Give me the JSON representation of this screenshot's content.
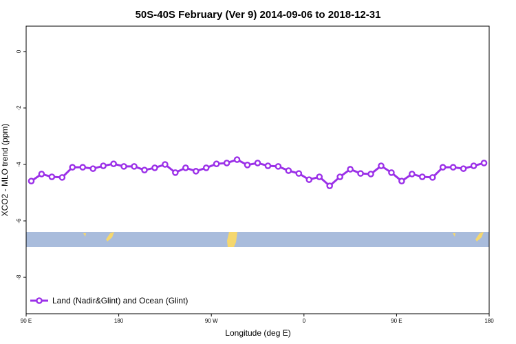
{
  "chart_data": {
    "type": "line",
    "title": "50S-40S February (Ver 9)   2014-09-06 to 2018-12-31",
    "x_label": "Longitude (deg E)",
    "y_label": "XCO2 - MLO trend (ppm)",
    "x": [
      95,
      105,
      115,
      125,
      135,
      145,
      155,
      165,
      175,
      185,
      195,
      205,
      215,
      225,
      235,
      245,
      255,
      265,
      275,
      285,
      295,
      305,
      315,
      325,
      335,
      345,
      355,
      365,
      375,
      385,
      395,
      405,
      415,
      425,
      435,
      445,
      455,
      465,
      475,
      485,
      495,
      505,
      515,
      525,
      535
    ],
    "series": [
      {
        "name": "Land (Nadir&Glint) and Ocean (Glint)",
        "color": "#9b30e8",
        "values": [
          -4.59,
          -4.34,
          -4.44,
          -4.46,
          -4.1,
          -4.1,
          -4.15,
          -4.05,
          -3.98,
          -4.07,
          -4.07,
          -4.2,
          -4.12,
          -4.0,
          -4.29,
          -4.12,
          -4.24,
          -4.12,
          -3.98,
          -3.95,
          -3.83,
          -4.02,
          -3.95,
          -4.05,
          -4.07,
          -4.22,
          -4.32,
          -4.54,
          -4.44,
          -4.76,
          -4.44,
          -4.17,
          -4.32,
          -4.34,
          -4.05,
          -4.29,
          -4.59,
          -4.34,
          -4.44,
          -4.46,
          -4.1,
          -4.1,
          -4.15,
          -4.05,
          -3.95
        ]
      }
    ],
    "xlim": [
      90,
      540
    ],
    "xticks": [
      {
        "value": 90,
        "label": "90 E"
      },
      180,
      {
        "value": 270,
        "label": "90 W"
      },
      {
        "value": 360,
        "label": "0"
      },
      {
        "value": 450,
        "label": "90 E"
      },
      {
        "value": 540,
        "label": "180"
      }
    ],
    "ylim": [
      -9.29,
      0.9
    ],
    "yticks": [
      0,
      -2,
      -4,
      -6,
      -8
    ],
    "legend": "bottom-left"
  }
}
